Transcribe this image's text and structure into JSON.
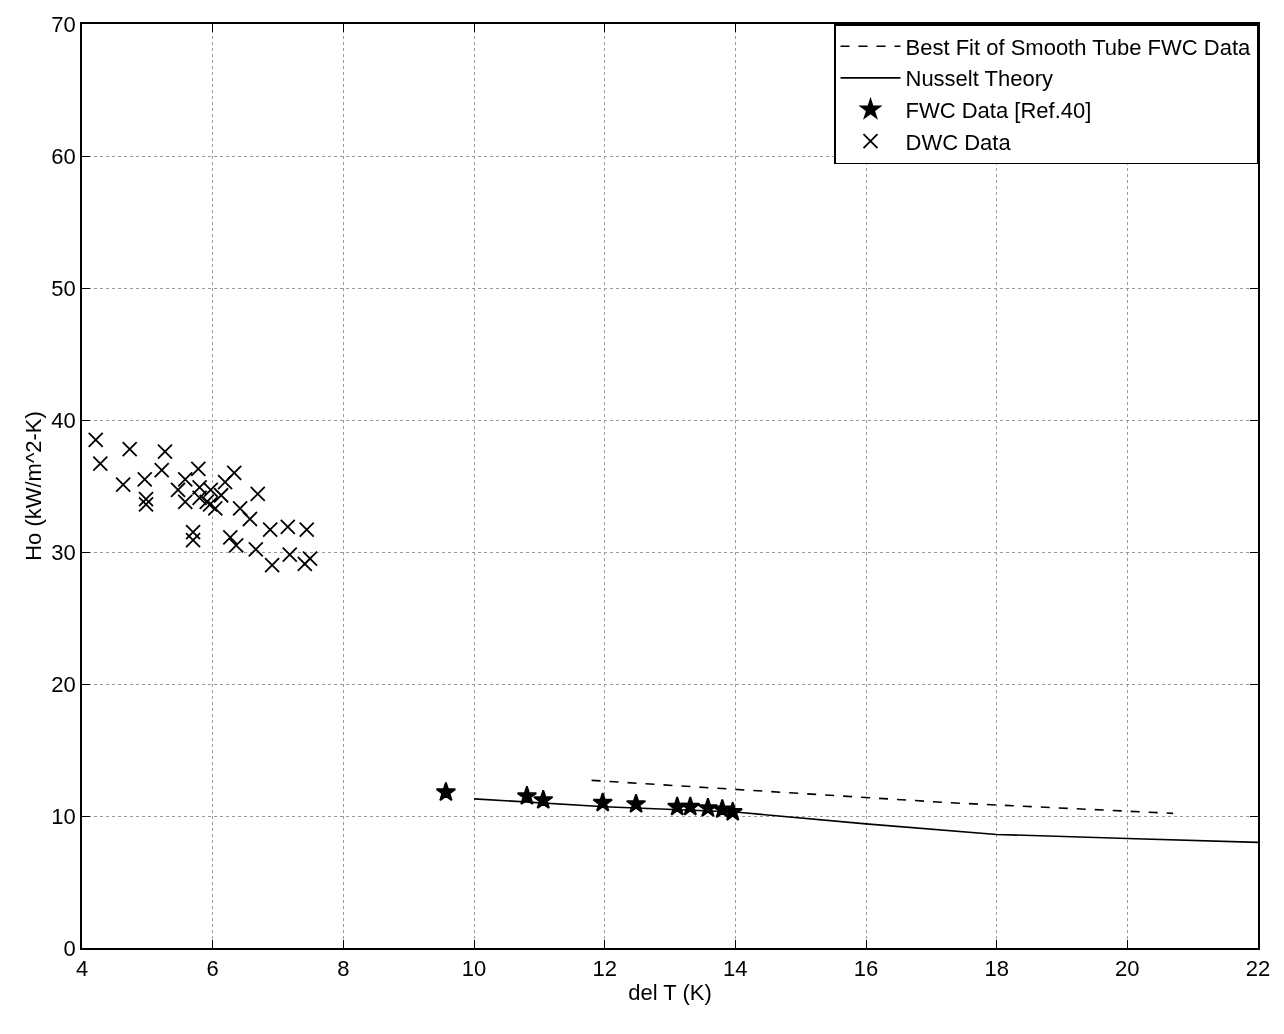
{
  "chart_data": {
    "type": "scatter",
    "xlabel": "del T (K)",
    "ylabel": "Ho (kW/m^2-K)",
    "xlim": [
      4,
      22
    ],
    "xticks": [
      4,
      6,
      8,
      10,
      12,
      14,
      16,
      18,
      20,
      22
    ],
    "ylim": [
      0,
      70
    ],
    "yticks": [
      0,
      10,
      20,
      30,
      40,
      50,
      60,
      70
    ],
    "grid": true,
    "legend": "top right",
    "series": [
      {
        "name": "Best Fit of Smooth Tube FWC Data",
        "type": "line",
        "line_style": "dashed",
        "marker": "none",
        "color": "#000000",
        "x": [
          11.8,
          14.7,
          17.3,
          20.7
        ],
        "values": [
          12.7,
          11.8,
          11.0,
          10.2
        ]
      },
      {
        "name": "Nusselt Theory",
        "type": "line",
        "line_style": "solid",
        "marker": "none",
        "color": "#000000",
        "x": [
          10,
          12,
          14,
          16,
          18,
          20,
          22
        ],
        "values": [
          11.3,
          10.7,
          10.3,
          9.4,
          8.6,
          8.3,
          8.0
        ]
      },
      {
        "name": "FWC Data [Ref.40]",
        "marker": "star",
        "color": "#000000",
        "x": [
          9.57,
          10.81,
          11.06,
          11.97,
          12.48,
          13.11,
          13.31,
          13.58,
          13.8,
          13.96
        ],
        "values": [
          11.8,
          11.5,
          11.2,
          11.0,
          10.9,
          10.7,
          10.7,
          10.6,
          10.5,
          10.3
        ]
      },
      {
        "name": "DWC Data",
        "marker": "cross",
        "color": "#000000",
        "x": [
          4.21,
          4.28,
          4.63,
          4.73,
          4.96,
          4.98,
          4.98,
          5.22,
          5.27,
          5.47,
          5.58,
          5.58,
          5.7,
          5.7,
          5.78,
          5.8,
          5.8,
          5.91,
          5.97,
          6.04,
          5.96,
          6.13,
          6.19,
          6.33,
          6.27,
          6.36,
          6.42,
          6.57,
          6.69,
          6.66,
          6.88,
          6.91,
          7.15,
          7.18,
          7.44,
          7.41,
          7.49
        ],
        "values": [
          38.5,
          36.7,
          35.1,
          37.8,
          35.5,
          34.0,
          33.6,
          36.2,
          37.6,
          34.7,
          35.5,
          33.8,
          31.5,
          30.9,
          36.3,
          34.9,
          34.1,
          33.8,
          34.7,
          33.3,
          33.6,
          34.3,
          35.3,
          36.0,
          31.1,
          30.5,
          33.3,
          32.5,
          34.4,
          30.2,
          31.7,
          29.0,
          31.9,
          29.8,
          31.7,
          29.1,
          29.5
        ]
      }
    ]
  }
}
